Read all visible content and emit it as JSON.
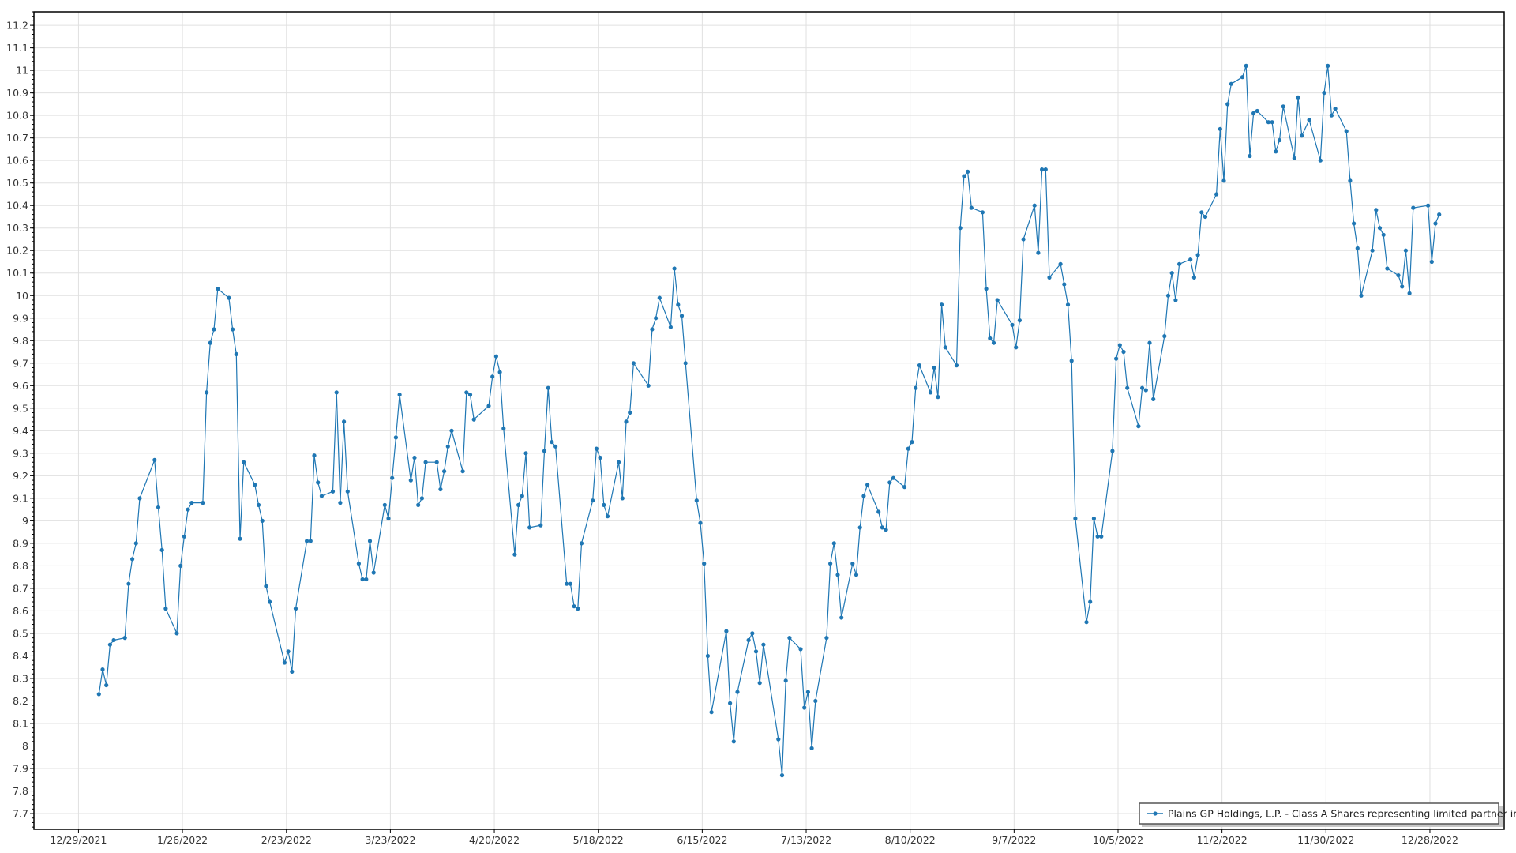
{
  "chart_data": {
    "type": "line",
    "title": "",
    "xlabel": "",
    "ylabel": "",
    "grid": true,
    "legend_position": "bottom-right",
    "markers": true,
    "colors": {
      "series": "#1f77b4",
      "grid": "#e0e0e0",
      "axis": "#000000"
    },
    "xlim": [
      "2021-12-17",
      "2023-01-17"
    ],
    "ylim": [
      7.63,
      11.26
    ],
    "x_ticks": [
      "12/29/2021",
      "1/26/2022",
      "2/23/2022",
      "3/23/2022",
      "4/20/2022",
      "5/18/2022",
      "6/15/2022",
      "7/13/2022",
      "8/10/2022",
      "9/7/2022",
      "10/5/2022",
      "11/2/2022",
      "11/30/2022",
      "12/28/2022"
    ],
    "y_ticks": [
      "7.7",
      "7.8",
      "7.9",
      "8",
      "8.1",
      "8.2",
      "8.3",
      "8.4",
      "8.5",
      "8.6",
      "8.7",
      "8.8",
      "8.9",
      "9",
      "9.1",
      "9.2",
      "9.3",
      "9.4",
      "9.5",
      "9.6",
      "9.7",
      "9.8",
      "9.9",
      "10",
      "10.1",
      "10.2",
      "10.3",
      "10.4",
      "10.5",
      "10.6",
      "10.7",
      "10.8",
      "10.9",
      "11",
      "11.1",
      "11.2"
    ],
    "series": [
      {
        "name": "Plains GP Holdings, L.P. - Class A Shares representing limited partner interests",
        "points": [
          [
            "2022-01-03",
            8.23
          ],
          [
            "2022-01-04",
            8.34
          ],
          [
            "2022-01-05",
            8.27
          ],
          [
            "2022-01-06",
            8.45
          ],
          [
            "2022-01-07",
            8.47
          ],
          [
            "2022-01-10",
            8.48
          ],
          [
            "2022-01-11",
            8.72
          ],
          [
            "2022-01-12",
            8.83
          ],
          [
            "2022-01-13",
            8.9
          ],
          [
            "2022-01-14",
            9.1
          ],
          [
            "2022-01-18",
            9.27
          ],
          [
            "2022-01-19",
            9.06
          ],
          [
            "2022-01-20",
            8.87
          ],
          [
            "2022-01-21",
            8.61
          ],
          [
            "2022-01-24",
            8.5
          ],
          [
            "2022-01-25",
            8.8
          ],
          [
            "2022-01-26",
            8.93
          ],
          [
            "2022-01-27",
            9.05
          ],
          [
            "2022-01-28",
            9.08
          ],
          [
            "2022-01-31",
            9.08
          ],
          [
            "2022-02-01",
            9.57
          ],
          [
            "2022-02-02",
            9.79
          ],
          [
            "2022-02-03",
            9.85
          ],
          [
            "2022-02-04",
            10.03
          ],
          [
            "2022-02-07",
            9.99
          ],
          [
            "2022-02-08",
            9.85
          ],
          [
            "2022-02-09",
            9.74
          ],
          [
            "2022-02-10",
            8.92
          ],
          [
            "2022-02-11",
            9.26
          ],
          [
            "2022-02-14",
            9.16
          ],
          [
            "2022-02-15",
            9.07
          ],
          [
            "2022-02-16",
            9.0
          ],
          [
            "2022-02-17",
            8.71
          ],
          [
            "2022-02-18",
            8.64
          ],
          [
            "2022-02-22",
            8.37
          ],
          [
            "2022-02-23",
            8.42
          ],
          [
            "2022-02-24",
            8.33
          ],
          [
            "2022-02-25",
            8.61
          ],
          [
            "2022-02-28",
            8.91
          ],
          [
            "2022-03-01",
            8.91
          ],
          [
            "2022-03-02",
            9.29
          ],
          [
            "2022-03-03",
            9.17
          ],
          [
            "2022-03-04",
            9.11
          ],
          [
            "2022-03-07",
            9.13
          ],
          [
            "2022-03-08",
            9.57
          ],
          [
            "2022-03-09",
            9.08
          ],
          [
            "2022-03-10",
            9.44
          ],
          [
            "2022-03-11",
            9.13
          ],
          [
            "2022-03-14",
            8.81
          ],
          [
            "2022-03-15",
            8.74
          ],
          [
            "2022-03-16",
            8.74
          ],
          [
            "2022-03-17",
            8.91
          ],
          [
            "2022-03-18",
            8.77
          ],
          [
            "2022-03-21",
            9.07
          ],
          [
            "2022-03-22",
            9.01
          ],
          [
            "2022-03-23",
            9.19
          ],
          [
            "2022-03-24",
            9.37
          ],
          [
            "2022-03-25",
            9.56
          ],
          [
            "2022-03-28",
            9.18
          ],
          [
            "2022-03-29",
            9.28
          ],
          [
            "2022-03-30",
            9.07
          ],
          [
            "2022-03-31",
            9.1
          ],
          [
            "2022-04-01",
            9.26
          ],
          [
            "2022-04-04",
            9.26
          ],
          [
            "2022-04-05",
            9.14
          ],
          [
            "2022-04-06",
            9.22
          ],
          [
            "2022-04-07",
            9.33
          ],
          [
            "2022-04-08",
            9.4
          ],
          [
            "2022-04-11",
            9.22
          ],
          [
            "2022-04-12",
            9.57
          ],
          [
            "2022-04-13",
            9.56
          ],
          [
            "2022-04-14",
            9.45
          ],
          [
            "2022-04-18",
            9.51
          ],
          [
            "2022-04-19",
            9.64
          ],
          [
            "2022-04-20",
            9.73
          ],
          [
            "2022-04-21",
            9.66
          ],
          [
            "2022-04-22",
            9.41
          ],
          [
            "2022-04-25",
            8.85
          ],
          [
            "2022-04-26",
            9.07
          ],
          [
            "2022-04-27",
            9.11
          ],
          [
            "2022-04-28",
            9.3
          ],
          [
            "2022-04-29",
            8.97
          ],
          [
            "2022-05-02",
            8.98
          ],
          [
            "2022-05-03",
            9.31
          ],
          [
            "2022-05-04",
            9.59
          ],
          [
            "2022-05-05",
            9.35
          ],
          [
            "2022-05-06",
            9.33
          ],
          [
            "2022-05-09",
            8.72
          ],
          [
            "2022-05-10",
            8.72
          ],
          [
            "2022-05-11",
            8.62
          ],
          [
            "2022-05-12",
            8.61
          ],
          [
            "2022-05-13",
            8.9
          ],
          [
            "2022-05-16",
            9.09
          ],
          [
            "2022-05-17",
            9.32
          ],
          [
            "2022-05-18",
            9.28
          ],
          [
            "2022-05-19",
            9.07
          ],
          [
            "2022-05-20",
            9.02
          ],
          [
            "2022-05-23",
            9.26
          ],
          [
            "2022-05-24",
            9.1
          ],
          [
            "2022-05-25",
            9.44
          ],
          [
            "2022-05-26",
            9.48
          ],
          [
            "2022-05-27",
            9.7
          ],
          [
            "2022-05-31",
            9.6
          ],
          [
            "2022-06-01",
            9.85
          ],
          [
            "2022-06-02",
            9.9
          ],
          [
            "2022-06-03",
            9.99
          ],
          [
            "2022-06-06",
            9.86
          ],
          [
            "2022-06-07",
            10.12
          ],
          [
            "2022-06-08",
            9.96
          ],
          [
            "2022-06-09",
            9.91
          ],
          [
            "2022-06-10",
            9.7
          ],
          [
            "2022-06-13",
            9.09
          ],
          [
            "2022-06-14",
            8.99
          ],
          [
            "2022-06-15",
            8.81
          ],
          [
            "2022-06-16",
            8.4
          ],
          [
            "2022-06-17",
            8.15
          ],
          [
            "2022-06-21",
            8.51
          ],
          [
            "2022-06-22",
            8.19
          ],
          [
            "2022-06-23",
            8.02
          ],
          [
            "2022-06-24",
            8.24
          ],
          [
            "2022-06-27",
            8.47
          ],
          [
            "2022-06-28",
            8.5
          ],
          [
            "2022-06-29",
            8.42
          ],
          [
            "2022-06-30",
            8.28
          ],
          [
            "2022-07-01",
            8.45
          ],
          [
            "2022-07-05",
            8.03
          ],
          [
            "2022-07-06",
            7.87
          ],
          [
            "2022-07-07",
            8.29
          ],
          [
            "2022-07-08",
            8.48
          ],
          [
            "2022-07-11",
            8.43
          ],
          [
            "2022-07-12",
            8.17
          ],
          [
            "2022-07-13",
            8.24
          ],
          [
            "2022-07-14",
            7.99
          ],
          [
            "2022-07-15",
            8.2
          ],
          [
            "2022-07-18",
            8.48
          ],
          [
            "2022-07-19",
            8.81
          ],
          [
            "2022-07-20",
            8.9
          ],
          [
            "2022-07-21",
            8.76
          ],
          [
            "2022-07-22",
            8.57
          ],
          [
            "2022-07-25",
            8.81
          ],
          [
            "2022-07-26",
            8.76
          ],
          [
            "2022-07-27",
            8.97
          ],
          [
            "2022-07-28",
            9.11
          ],
          [
            "2022-07-29",
            9.16
          ],
          [
            "2022-08-01",
            9.04
          ],
          [
            "2022-08-02",
            8.97
          ],
          [
            "2022-08-03",
            8.96
          ],
          [
            "2022-08-04",
            9.17
          ],
          [
            "2022-08-05",
            9.19
          ],
          [
            "2022-08-08",
            9.15
          ],
          [
            "2022-08-09",
            9.32
          ],
          [
            "2022-08-10",
            9.35
          ],
          [
            "2022-08-11",
            9.59
          ],
          [
            "2022-08-12",
            9.69
          ],
          [
            "2022-08-15",
            9.57
          ],
          [
            "2022-08-16",
            9.68
          ],
          [
            "2022-08-17",
            9.55
          ],
          [
            "2022-08-18",
            9.96
          ],
          [
            "2022-08-19",
            9.77
          ],
          [
            "2022-08-22",
            9.69
          ],
          [
            "2022-08-23",
            10.3
          ],
          [
            "2022-08-24",
            10.53
          ],
          [
            "2022-08-25",
            10.55
          ],
          [
            "2022-08-26",
            10.39
          ],
          [
            "2022-08-29",
            10.37
          ],
          [
            "2022-08-30",
            10.03
          ],
          [
            "2022-08-31",
            9.81
          ],
          [
            "2022-09-01",
            9.79
          ],
          [
            "2022-09-02",
            9.98
          ],
          [
            "2022-09-06",
            9.87
          ],
          [
            "2022-09-07",
            9.77
          ],
          [
            "2022-09-08",
            9.89
          ],
          [
            "2022-09-09",
            10.25
          ],
          [
            "2022-09-12",
            10.4
          ],
          [
            "2022-09-13",
            10.19
          ],
          [
            "2022-09-14",
            10.56
          ],
          [
            "2022-09-15",
            10.56
          ],
          [
            "2022-09-16",
            10.08
          ],
          [
            "2022-09-19",
            10.14
          ],
          [
            "2022-09-20",
            10.05
          ],
          [
            "2022-09-21",
            9.96
          ],
          [
            "2022-09-22",
            9.71
          ],
          [
            "2022-09-23",
            9.01
          ],
          [
            "2022-09-26",
            8.55
          ],
          [
            "2022-09-27",
            8.64
          ],
          [
            "2022-09-28",
            9.01
          ],
          [
            "2022-09-29",
            8.93
          ],
          [
            "2022-09-30",
            8.93
          ],
          [
            "2022-10-03",
            9.31
          ],
          [
            "2022-10-04",
            9.72
          ],
          [
            "2022-10-05",
            9.78
          ],
          [
            "2022-10-06",
            9.75
          ],
          [
            "2022-10-07",
            9.59
          ],
          [
            "2022-10-10",
            9.42
          ],
          [
            "2022-10-11",
            9.59
          ],
          [
            "2022-10-12",
            9.58
          ],
          [
            "2022-10-13",
            9.79
          ],
          [
            "2022-10-14",
            9.54
          ],
          [
            "2022-10-17",
            9.82
          ],
          [
            "2022-10-18",
            10.0
          ],
          [
            "2022-10-19",
            10.1
          ],
          [
            "2022-10-20",
            9.98
          ],
          [
            "2022-10-21",
            10.14
          ],
          [
            "2022-10-24",
            10.16
          ],
          [
            "2022-10-25",
            10.08
          ],
          [
            "2022-10-26",
            10.18
          ],
          [
            "2022-10-27",
            10.37
          ],
          [
            "2022-10-28",
            10.35
          ],
          [
            "2022-10-31",
            10.45
          ],
          [
            "2022-11-01",
            10.74
          ],
          [
            "2022-11-02",
            10.51
          ],
          [
            "2022-11-03",
            10.85
          ],
          [
            "2022-11-04",
            10.94
          ],
          [
            "2022-11-07",
            10.97
          ],
          [
            "2022-11-08",
            11.02
          ],
          [
            "2022-11-09",
            10.62
          ],
          [
            "2022-11-10",
            10.81
          ],
          [
            "2022-11-11",
            10.82
          ],
          [
            "2022-11-14",
            10.77
          ],
          [
            "2022-11-15",
            10.77
          ],
          [
            "2022-11-16",
            10.64
          ],
          [
            "2022-11-17",
            10.69
          ],
          [
            "2022-11-18",
            10.84
          ],
          [
            "2022-11-21",
            10.61
          ],
          [
            "2022-11-22",
            10.88
          ],
          [
            "2022-11-23",
            10.71
          ],
          [
            "2022-11-25",
            10.78
          ],
          [
            "2022-11-28",
            10.6
          ],
          [
            "2022-11-29",
            10.9
          ],
          [
            "2022-11-30",
            11.02
          ],
          [
            "2022-12-01",
            10.8
          ],
          [
            "2022-12-02",
            10.83
          ],
          [
            "2022-12-05",
            10.73
          ],
          [
            "2022-12-06",
            10.51
          ],
          [
            "2022-12-07",
            10.32
          ],
          [
            "2022-12-08",
            10.21
          ],
          [
            "2022-12-09",
            10.0
          ],
          [
            "2022-12-12",
            10.2
          ],
          [
            "2022-12-13",
            10.38
          ],
          [
            "2022-12-14",
            10.3
          ],
          [
            "2022-12-15",
            10.27
          ],
          [
            "2022-12-16",
            10.12
          ],
          [
            "2022-12-19",
            10.09
          ],
          [
            "2022-12-20",
            10.04
          ],
          [
            "2022-12-21",
            10.2
          ],
          [
            "2022-12-22",
            10.01
          ],
          [
            "2022-12-23",
            10.39
          ],
          [
            "2022-12-27",
            10.4
          ],
          [
            "2022-12-28",
            10.15
          ],
          [
            "2022-12-29",
            10.32
          ],
          [
            "2022-12-30",
            10.36
          ]
        ]
      }
    ]
  }
}
